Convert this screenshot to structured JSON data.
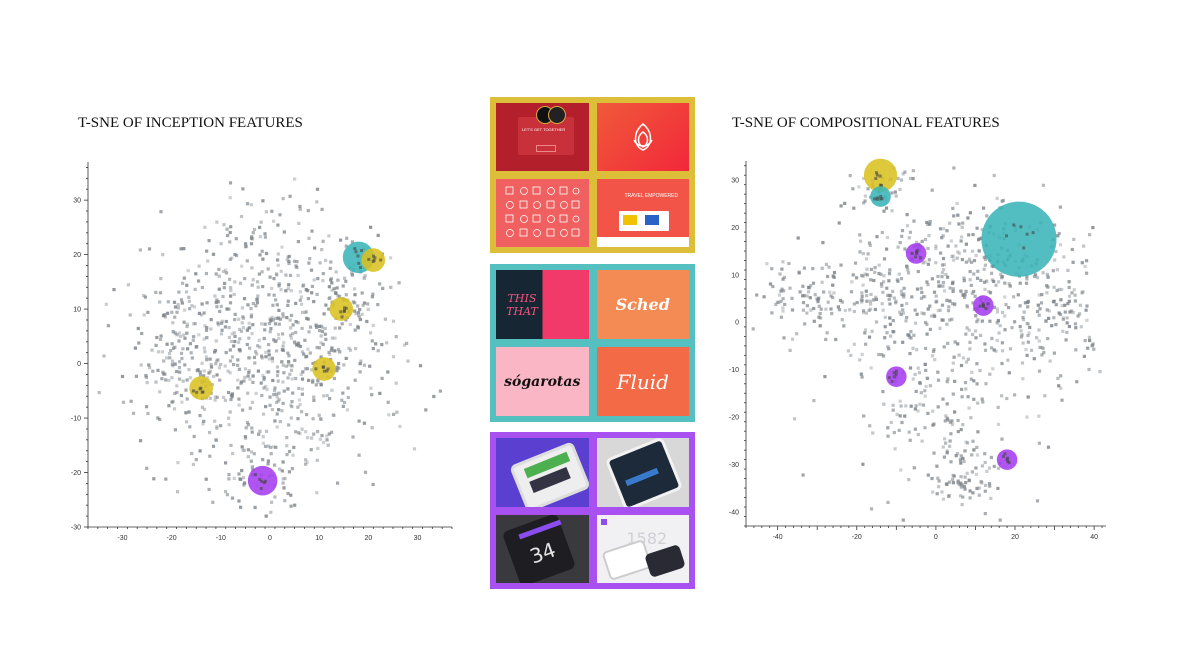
{
  "colors": {
    "point": "#7b8288",
    "yellow": "#d9c020",
    "teal": "#3bb5b8",
    "purple": "#a53df0",
    "collage_yellow": "#dcbe39",
    "collage_teal": "#55c0c0",
    "collage_purple": "#a851f0"
  },
  "chart_data": [
    {
      "type": "scatter",
      "title": "T-SNE OF INCEPTION FEATURES",
      "xlabel": "",
      "ylabel": "",
      "xlim": [
        -37,
        37
      ],
      "ylim": [
        -30,
        37
      ],
      "x_ticks": [
        "-30",
        "-20",
        "-10",
        "0",
        "10",
        "20",
        "30"
      ],
      "y_ticks": [
        "30",
        "20",
        "10",
        "0",
        "-10",
        "-20",
        "-30"
      ],
      "grid": false,
      "highlights": [
        {
          "x": 18,
          "y": 19.5,
          "r": 3.2,
          "color": "teal"
        },
        {
          "x": 21,
          "y": 19,
          "r": 2.4,
          "color": "yellow"
        },
        {
          "x": 14.5,
          "y": 10,
          "r": 2.4,
          "color": "yellow"
        },
        {
          "x": 11,
          "y": -1,
          "r": 2.4,
          "color": "yellow"
        },
        {
          "x": -14,
          "y": -4.5,
          "r": 2.4,
          "color": "yellow"
        },
        {
          "x": -1.5,
          "y": -21.5,
          "r": 3.0,
          "color": "purple"
        }
      ]
    },
    {
      "type": "scatter",
      "title": "T-SNE OF COMPOSITIONAL FEATURES",
      "xlabel": "",
      "ylabel": "",
      "xlim": [
        -48,
        43
      ],
      "ylim": [
        -43,
        34
      ],
      "x_ticks": [
        "-40",
        "-20",
        "0",
        "20",
        "40"
      ],
      "y_ticks": [
        "30",
        "20",
        "10",
        "0",
        "-10",
        "-20",
        "-30",
        "-40"
      ],
      "grid": false,
      "highlights": [
        {
          "x": -14,
          "y": 31,
          "r": 4.2,
          "color": "yellow"
        },
        {
          "x": -14,
          "y": 26.5,
          "r": 2.6,
          "color": "teal"
        },
        {
          "x": 21,
          "y": 17.5,
          "r": 9.5,
          "color": "teal"
        },
        {
          "x": -5,
          "y": 14.5,
          "r": 2.6,
          "color": "purple"
        },
        {
          "x": 12,
          "y": 3.5,
          "r": 2.6,
          "color": "purple"
        },
        {
          "x": -10,
          "y": -11.5,
          "r": 2.6,
          "color": "purple"
        },
        {
          "x": 18,
          "y": -29,
          "r": 2.6,
          "color": "purple"
        }
      ]
    }
  ],
  "collage": {
    "yellow_group": {
      "tile1_title": "LET'S GET TOGETHER",
      "tile4_title": "TRAVEL EMPOWERED"
    },
    "teal_group": {
      "tile1": "THIS THAT",
      "tile2": "Sched",
      "tile3": "sógarotas",
      "tile4": "Fluid"
    },
    "purple_group": {
      "tile3_value": "34",
      "tile4_value": "1582"
    }
  }
}
